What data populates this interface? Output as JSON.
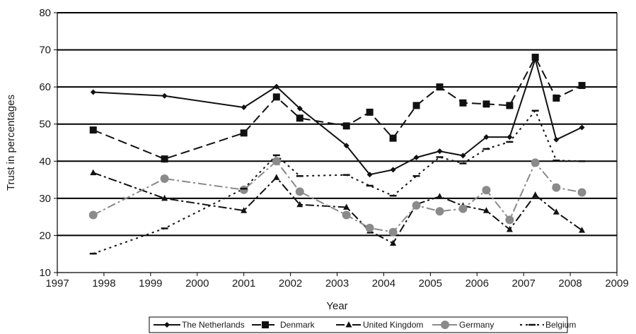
{
  "chart_data": {
    "type": "line",
    "xlabel": "Year",
    "ylabel": "Trust in percentages",
    "xlim": [
      1997,
      2009
    ],
    "ylim": [
      10,
      80
    ],
    "x_tick_labels": [
      "1997",
      "1998",
      "1999",
      "2000",
      "2001",
      "2002",
      "2003",
      "2004",
      "2005",
      "2006",
      "2007",
      "2008",
      "2009"
    ],
    "y_tick_labels": [
      "10",
      "20",
      "30",
      "40",
      "50",
      "60",
      "70",
      "80"
    ],
    "grid": "horizontal",
    "legend_position": "bottom",
    "series": [
      {
        "name": "The Netherlands",
        "color": "#111111",
        "line_style": "solid",
        "marker": "diamond",
        "points": [
          [
            1997.77,
            58.6
          ],
          [
            1999.3,
            57.6
          ],
          [
            2001.0,
            54.5
          ],
          [
            2001.7,
            60.1
          ],
          [
            2002.2,
            54.2
          ],
          [
            2003.2,
            44.2
          ],
          [
            2003.7,
            36.4
          ],
          [
            2004.2,
            37.7
          ],
          [
            2004.7,
            41.0
          ],
          [
            2005.2,
            42.7
          ],
          [
            2005.7,
            41.5
          ],
          [
            2006.2,
            46.5
          ],
          [
            2006.7,
            46.5
          ],
          [
            2007.25,
            67.5
          ],
          [
            2007.7,
            45.8
          ],
          [
            2008.25,
            49.1
          ]
        ]
      },
      {
        "name": "Denmark",
        "color": "#111111",
        "line_style": "long-dash",
        "marker": "square",
        "points": [
          [
            1997.77,
            48.4
          ],
          [
            1999.3,
            40.6
          ],
          [
            2001.0,
            47.6
          ],
          [
            2001.7,
            57.3
          ],
          [
            2002.2,
            51.6
          ],
          [
            2003.2,
            49.5
          ],
          [
            2003.7,
            53.2
          ],
          [
            2004.2,
            46.2
          ],
          [
            2004.7,
            55.0
          ],
          [
            2005.2,
            60.0
          ],
          [
            2005.7,
            55.7
          ],
          [
            2006.2,
            55.4
          ],
          [
            2006.7,
            55.0
          ],
          [
            2007.25,
            68.0
          ],
          [
            2007.7,
            57.0
          ],
          [
            2008.25,
            60.4
          ]
        ]
      },
      {
        "name": "United Kingdom",
        "color": "#111111",
        "line_style": "dash-dot",
        "marker": "triangle",
        "points": [
          [
            1997.77,
            36.9
          ],
          [
            1999.3,
            30.0
          ],
          [
            2001.0,
            26.7
          ],
          [
            2001.7,
            35.6
          ],
          [
            2002.2,
            28.3
          ],
          [
            2003.2,
            27.6
          ],
          [
            2003.7,
            21.2
          ],
          [
            2004.2,
            17.9
          ],
          [
            2004.7,
            28.4
          ],
          [
            2005.2,
            30.5
          ],
          [
            2005.7,
            28.0
          ],
          [
            2006.2,
            26.7
          ],
          [
            2006.7,
            21.6
          ],
          [
            2007.25,
            30.9
          ],
          [
            2007.7,
            26.3
          ],
          [
            2008.25,
            21.4
          ]
        ]
      },
      {
        "name": "Germany",
        "color": "#8a8a8a",
        "line_style": "dash-dot",
        "marker": "circle",
        "points": [
          [
            1997.77,
            25.5
          ],
          [
            1999.3,
            35.3
          ],
          [
            2001.0,
            32.3
          ],
          [
            2001.7,
            40.0
          ],
          [
            2002.2,
            31.8
          ],
          [
            2003.2,
            25.5
          ],
          [
            2003.7,
            22.0
          ],
          [
            2004.2,
            20.9
          ],
          [
            2004.7,
            28.1
          ],
          [
            2005.2,
            26.5
          ],
          [
            2005.7,
            27.2
          ],
          [
            2006.2,
            32.2
          ],
          [
            2006.7,
            24.2
          ],
          [
            2007.25,
            39.6
          ],
          [
            2007.7,
            32.9
          ],
          [
            2008.25,
            31.6
          ]
        ]
      },
      {
        "name": "Belgium",
        "color": "#111111",
        "line_style": "dotted",
        "marker": "dash",
        "points": [
          [
            1997.77,
            15.1
          ],
          [
            1999.3,
            21.9
          ],
          [
            2001.0,
            32.6
          ],
          [
            2001.7,
            41.6
          ],
          [
            2002.2,
            36.0
          ],
          [
            2003.2,
            36.3
          ],
          [
            2003.7,
            33.4
          ],
          [
            2004.2,
            30.7
          ],
          [
            2004.7,
            36.0
          ],
          [
            2005.2,
            41.1
          ],
          [
            2005.7,
            39.4
          ],
          [
            2006.2,
            43.3
          ],
          [
            2006.7,
            45.2
          ],
          [
            2007.25,
            53.6
          ],
          [
            2007.7,
            40.2
          ],
          [
            2008.25,
            40.0
          ]
        ]
      }
    ]
  }
}
